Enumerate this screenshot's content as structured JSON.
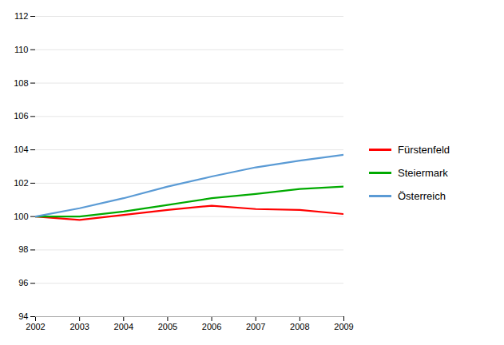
{
  "chart_data": {
    "type": "line",
    "x": [
      2002,
      2003,
      2004,
      2005,
      2006,
      2007,
      2008,
      2009
    ],
    "series": [
      {
        "name": "Fürstenfeld",
        "color": "#ff0000",
        "values": [
          100.0,
          99.8,
          100.1,
          100.4,
          100.65,
          100.45,
          100.4,
          100.15
        ]
      },
      {
        "name": "Steiermark",
        "color": "#00aa00",
        "values": [
          100.0,
          100.0,
          100.3,
          100.7,
          101.1,
          101.35,
          101.65,
          101.8
        ]
      },
      {
        "name": "Österreich",
        "color": "#5b9bd5",
        "values": [
          100.0,
          100.5,
          101.1,
          101.8,
          102.4,
          102.95,
          103.35,
          103.7
        ]
      }
    ],
    "xlim": [
      2002,
      2009
    ],
    "xticks": [
      2002,
      2003,
      2004,
      2005,
      2006,
      2007,
      2008,
      2009
    ],
    "ylim": [
      94,
      112
    ],
    "yticks": [
      94,
      96,
      98,
      100,
      102,
      104,
      106,
      108,
      110,
      112
    ],
    "grid": true,
    "legend": "right"
  }
}
